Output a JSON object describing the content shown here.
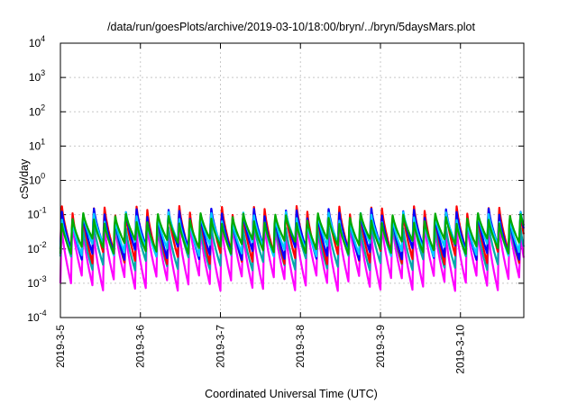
{
  "chart_data": {
    "type": "line",
    "title": "/data/run/goesPlots/archive/2019-03-10/18:00/bryn/../bryn/5daysMars.plot",
    "xlabel": "Coordinated Universal Time (UTC)",
    "ylabel": "cSv/day",
    "yscale": "log",
    "ylim": [
      0.0001,
      10000
    ],
    "xlim": [
      "2019-03-05",
      "2019-03-10T19:00"
    ],
    "grid": true,
    "legend": "none",
    "x_ticks": [
      "2019-3-5",
      "2019-3-6",
      "2019-3-7",
      "2019-3-8",
      "2019-3-9",
      "2019-3-10"
    ],
    "y_ticks": [
      {
        "value": 0.0001,
        "base": "10",
        "exp": "-4"
      },
      {
        "value": 0.001,
        "base": "10",
        "exp": "-3"
      },
      {
        "value": 0.01,
        "base": "10",
        "exp": "-2"
      },
      {
        "value": 0.1,
        "base": "10",
        "exp": "-1"
      },
      {
        "value": 1,
        "base": "10",
        "exp": "0"
      },
      {
        "value": 10,
        "base": "10",
        "exp": "1"
      },
      {
        "value": 100,
        "base": "10",
        "exp": "2"
      },
      {
        "value": 1000,
        "base": "10",
        "exp": "3"
      },
      {
        "value": 10000,
        "base": "10",
        "exp": "4"
      }
    ],
    "series_pattern": {
      "description": "sawtooth: each period rises from trough to peak then decays",
      "period_hours": 3.2,
      "series": [
        {
          "color": "#ff00ff",
          "peak": 0.05,
          "trough": 0.001
        },
        {
          "color": "#00aaaa",
          "peak": 0.07,
          "trough": 0.004
        },
        {
          "color": "#ff0000",
          "peak": 0.16,
          "trough": 0.006
        },
        {
          "color": "#0000ff",
          "peak": 0.13,
          "trough": 0.008
        },
        {
          "color": "#00ccff",
          "peak": 0.1,
          "trough": 0.01
        },
        {
          "color": "#00aa00",
          "peak": 0.09,
          "trough": 0.012
        }
      ]
    }
  }
}
